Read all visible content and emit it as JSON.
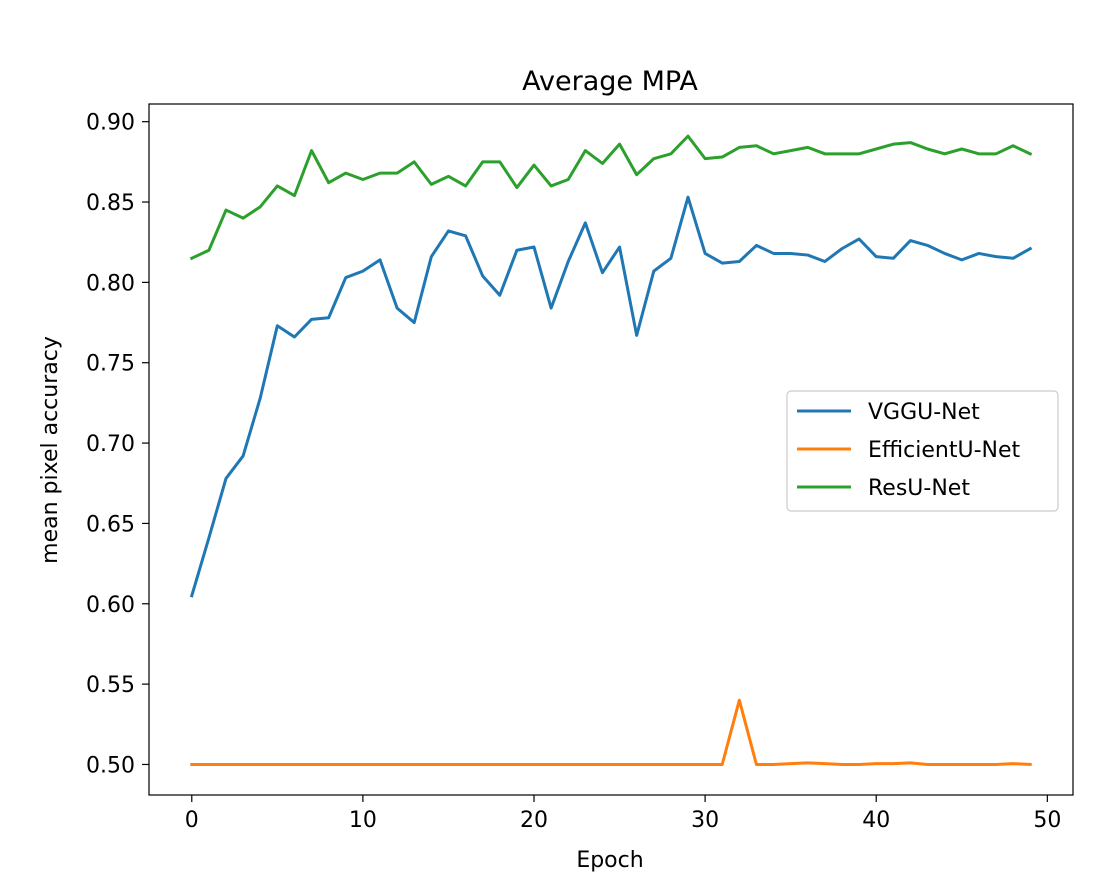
{
  "chart_data": {
    "type": "line",
    "title": "Average MPA",
    "xlabel": "Epoch",
    "ylabel": "mean pixel accuracy",
    "xlim": [
      -2.5,
      51.5
    ],
    "ylim": [
      0.481,
      0.911
    ],
    "xticks": [
      0,
      10,
      20,
      30,
      40,
      50
    ],
    "yticks": [
      0.5,
      0.55,
      0.6,
      0.65,
      0.7,
      0.75,
      0.8,
      0.85,
      0.9
    ],
    "xtick_labels": [
      "0",
      "10",
      "20",
      "30",
      "40",
      "50"
    ],
    "ytick_labels": [
      "0.50",
      "0.55",
      "0.60",
      "0.65",
      "0.70",
      "0.75",
      "0.80",
      "0.85",
      "0.90"
    ],
    "grid": false,
    "legend_position": "center-right",
    "x": [
      0,
      1,
      2,
      3,
      4,
      5,
      6,
      7,
      8,
      9,
      10,
      11,
      12,
      13,
      14,
      15,
      16,
      17,
      18,
      19,
      20,
      21,
      22,
      23,
      24,
      25,
      26,
      27,
      28,
      29,
      30,
      31,
      32,
      33,
      34,
      35,
      36,
      37,
      38,
      39,
      40,
      41,
      42,
      43,
      44,
      45,
      46,
      47,
      48,
      49
    ],
    "series": [
      {
        "name": "VGGU-Net",
        "color": "#1f77b4",
        "values": [
          0.605,
          0.641,
          0.678,
          0.692,
          0.728,
          0.773,
          0.766,
          0.777,
          0.778,
          0.803,
          0.807,
          0.814,
          0.784,
          0.775,
          0.816,
          0.832,
          0.829,
          0.804,
          0.792,
          0.82,
          0.822,
          0.784,
          0.813,
          0.837,
          0.806,
          0.822,
          0.767,
          0.807,
          0.815,
          0.853,
          0.818,
          0.812,
          0.813,
          0.823,
          0.818,
          0.818,
          0.817,
          0.813,
          0.821,
          0.827,
          0.816,
          0.815,
          0.826,
          0.823,
          0.818,
          0.814,
          0.818,
          0.816,
          0.815,
          0.821
        ]
      },
      {
        "name": "EfficientU-Net",
        "color": "#ff7f0e",
        "values": [
          0.5,
          0.5,
          0.5,
          0.5,
          0.5,
          0.5,
          0.5,
          0.5,
          0.5,
          0.5,
          0.5,
          0.5,
          0.5,
          0.5,
          0.5,
          0.5,
          0.5,
          0.5,
          0.5,
          0.5,
          0.5,
          0.5,
          0.5,
          0.5,
          0.5,
          0.5,
          0.5,
          0.5,
          0.5,
          0.5,
          0.5,
          0.5,
          0.54,
          0.5,
          0.5,
          0.5005,
          0.501,
          0.5005,
          0.5,
          0.5,
          0.5005,
          0.5005,
          0.501,
          0.5,
          0.5,
          0.5,
          0.5,
          0.5,
          0.5005,
          0.5
        ]
      },
      {
        "name": "ResU-Net",
        "color": "#2ca02c",
        "values": [
          0.815,
          0.82,
          0.845,
          0.84,
          0.847,
          0.86,
          0.854,
          0.882,
          0.862,
          0.868,
          0.864,
          0.868,
          0.868,
          0.875,
          0.861,
          0.866,
          0.86,
          0.875,
          0.875,
          0.859,
          0.873,
          0.86,
          0.864,
          0.882,
          0.874,
          0.886,
          0.867,
          0.877,
          0.88,
          0.891,
          0.877,
          0.878,
          0.884,
          0.885,
          0.88,
          0.882,
          0.884,
          0.88,
          0.88,
          0.88,
          0.883,
          0.886,
          0.887,
          0.883,
          0.88,
          0.883,
          0.88,
          0.88,
          0.885,
          0.88
        ]
      }
    ]
  }
}
